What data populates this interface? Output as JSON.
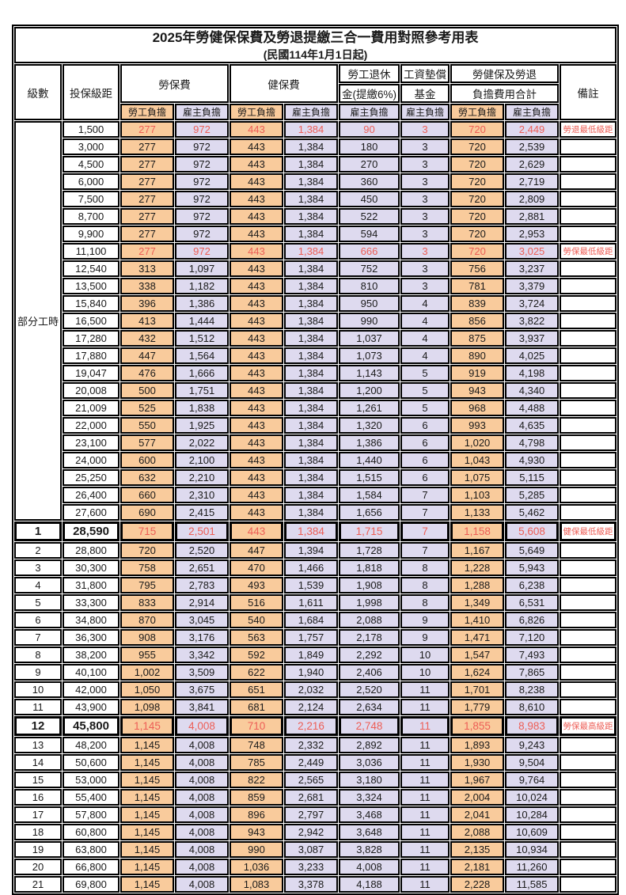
{
  "title": "2025年勞健保保費及勞退提繳三合一費用對照參考用表",
  "subtitle": "(民國114年1月1日起)",
  "columns": {
    "level": "級數",
    "bracket": "投保級距",
    "labor_insurance": "勞保費",
    "health_insurance": "健保費",
    "pension_line1": "勞工退休",
    "pension_line2": "金(提繳6%)",
    "wage_fund_line1": "工資墊償",
    "wage_fund_line2": "基金",
    "combined_line1": "勞健保及勞退",
    "combined_line2": "負擔費用合計",
    "remark": "備註",
    "worker_share": "勞工負擔",
    "employer_share": "雇主負擔"
  },
  "part_time_group_label": "部分工時",
  "colors": {
    "worker_bg": "#F9CB9C",
    "employer_bg": "#DEDAEF",
    "highlight_red": "#ED5E56",
    "border": "#000000"
  },
  "rows": [
    {
      "level": null,
      "bracket": "1,500",
      "values": [
        "277",
        "972",
        "443",
        "1,384",
        "90",
        "3",
        "720",
        "2,449"
      ],
      "remark": "勞退最低級距",
      "red": true,
      "emphasis": false
    },
    {
      "level": null,
      "bracket": "3,000",
      "values": [
        "277",
        "972",
        "443",
        "1,384",
        "180",
        "3",
        "720",
        "2,539"
      ],
      "remark": "",
      "red": false,
      "emphasis": false
    },
    {
      "level": null,
      "bracket": "4,500",
      "values": [
        "277",
        "972",
        "443",
        "1,384",
        "270",
        "3",
        "720",
        "2,629"
      ],
      "remark": "",
      "red": false,
      "emphasis": false
    },
    {
      "level": null,
      "bracket": "6,000",
      "values": [
        "277",
        "972",
        "443",
        "1,384",
        "360",
        "3",
        "720",
        "2,719"
      ],
      "remark": "",
      "red": false,
      "emphasis": false
    },
    {
      "level": null,
      "bracket": "7,500",
      "values": [
        "277",
        "972",
        "443",
        "1,384",
        "450",
        "3",
        "720",
        "2,809"
      ],
      "remark": "",
      "red": false,
      "emphasis": false
    },
    {
      "level": null,
      "bracket": "8,700",
      "values": [
        "277",
        "972",
        "443",
        "1,384",
        "522",
        "3",
        "720",
        "2,881"
      ],
      "remark": "",
      "red": false,
      "emphasis": false
    },
    {
      "level": null,
      "bracket": "9,900",
      "values": [
        "277",
        "972",
        "443",
        "1,384",
        "594",
        "3",
        "720",
        "2,953"
      ],
      "remark": "",
      "red": false,
      "emphasis": false
    },
    {
      "level": null,
      "bracket": "11,100",
      "values": [
        "277",
        "972",
        "443",
        "1,384",
        "666",
        "3",
        "720",
        "3,025"
      ],
      "remark": "勞保最低級距",
      "red": true,
      "emphasis": false
    },
    {
      "level": null,
      "bracket": "12,540",
      "values": [
        "313",
        "1,097",
        "443",
        "1,384",
        "752",
        "3",
        "756",
        "3,237"
      ],
      "remark": "",
      "red": false,
      "emphasis": false
    },
    {
      "level": null,
      "bracket": "13,500",
      "values": [
        "338",
        "1,182",
        "443",
        "1,384",
        "810",
        "3",
        "781",
        "3,379"
      ],
      "remark": "",
      "red": false,
      "emphasis": false
    },
    {
      "level": null,
      "bracket": "15,840",
      "values": [
        "396",
        "1,386",
        "443",
        "1,384",
        "950",
        "4",
        "839",
        "3,724"
      ],
      "remark": "",
      "red": false,
      "emphasis": false
    },
    {
      "level": null,
      "bracket": "16,500",
      "values": [
        "413",
        "1,444",
        "443",
        "1,384",
        "990",
        "4",
        "856",
        "3,822"
      ],
      "remark": "",
      "red": false,
      "emphasis": false
    },
    {
      "level": null,
      "bracket": "17,280",
      "values": [
        "432",
        "1,512",
        "443",
        "1,384",
        "1,037",
        "4",
        "875",
        "3,937"
      ],
      "remark": "",
      "red": false,
      "emphasis": false
    },
    {
      "level": null,
      "bracket": "17,880",
      "values": [
        "447",
        "1,564",
        "443",
        "1,384",
        "1,073",
        "4",
        "890",
        "4,025"
      ],
      "remark": "",
      "red": false,
      "emphasis": false
    },
    {
      "level": null,
      "bracket": "19,047",
      "values": [
        "476",
        "1,666",
        "443",
        "1,384",
        "1,143",
        "5",
        "919",
        "4,198"
      ],
      "remark": "",
      "red": false,
      "emphasis": false
    },
    {
      "level": null,
      "bracket": "20,008",
      "values": [
        "500",
        "1,751",
        "443",
        "1,384",
        "1,200",
        "5",
        "943",
        "4,340"
      ],
      "remark": "",
      "red": false,
      "emphasis": false
    },
    {
      "level": null,
      "bracket": "21,009",
      "values": [
        "525",
        "1,838",
        "443",
        "1,384",
        "1,261",
        "5",
        "968",
        "4,488"
      ],
      "remark": "",
      "red": false,
      "emphasis": false
    },
    {
      "level": null,
      "bracket": "22,000",
      "values": [
        "550",
        "1,925",
        "443",
        "1,384",
        "1,320",
        "6",
        "993",
        "4,635"
      ],
      "remark": "",
      "red": false,
      "emphasis": false
    },
    {
      "level": null,
      "bracket": "23,100",
      "values": [
        "577",
        "2,022",
        "443",
        "1,384",
        "1,386",
        "6",
        "1,020",
        "4,798"
      ],
      "remark": "",
      "red": false,
      "emphasis": false
    },
    {
      "level": null,
      "bracket": "24,000",
      "values": [
        "600",
        "2,100",
        "443",
        "1,384",
        "1,440",
        "6",
        "1,043",
        "4,930"
      ],
      "remark": "",
      "red": false,
      "emphasis": false
    },
    {
      "level": null,
      "bracket": "25,250",
      "values": [
        "632",
        "2,210",
        "443",
        "1,384",
        "1,515",
        "6",
        "1,075",
        "5,115"
      ],
      "remark": "",
      "red": false,
      "emphasis": false
    },
    {
      "level": null,
      "bracket": "26,400",
      "values": [
        "660",
        "2,310",
        "443",
        "1,384",
        "1,584",
        "7",
        "1,103",
        "5,285"
      ],
      "remark": "",
      "red": false,
      "emphasis": false
    },
    {
      "level": null,
      "bracket": "27,600",
      "values": [
        "690",
        "2,415",
        "443",
        "1,384",
        "1,656",
        "7",
        "1,133",
        "5,462"
      ],
      "remark": "",
      "red": false,
      "emphasis": false
    },
    {
      "level": "1",
      "bracket": "28,590",
      "values": [
        "715",
        "2,501",
        "443",
        "1,384",
        "1,715",
        "7",
        "1,158",
        "5,608"
      ],
      "remark": "健保最低級距",
      "red": true,
      "emphasis": true
    },
    {
      "level": "2",
      "bracket": "28,800",
      "values": [
        "720",
        "2,520",
        "447",
        "1,394",
        "1,728",
        "7",
        "1,167",
        "5,649"
      ],
      "remark": "",
      "red": false,
      "emphasis": false
    },
    {
      "level": "3",
      "bracket": "30,300",
      "values": [
        "758",
        "2,651",
        "470",
        "1,466",
        "1,818",
        "8",
        "1,228",
        "5,943"
      ],
      "remark": "",
      "red": false,
      "emphasis": false
    },
    {
      "level": "4",
      "bracket": "31,800",
      "values": [
        "795",
        "2,783",
        "493",
        "1,539",
        "1,908",
        "8",
        "1,288",
        "6,238"
      ],
      "remark": "",
      "red": false,
      "emphasis": false
    },
    {
      "level": "5",
      "bracket": "33,300",
      "values": [
        "833",
        "2,914",
        "516",
        "1,611",
        "1,998",
        "8",
        "1,349",
        "6,531"
      ],
      "remark": "",
      "red": false,
      "emphasis": false
    },
    {
      "level": "6",
      "bracket": "34,800",
      "values": [
        "870",
        "3,045",
        "540",
        "1,684",
        "2,088",
        "9",
        "1,410",
        "6,826"
      ],
      "remark": "",
      "red": false,
      "emphasis": false
    },
    {
      "level": "7",
      "bracket": "36,300",
      "values": [
        "908",
        "3,176",
        "563",
        "1,757",
        "2,178",
        "9",
        "1,471",
        "7,120"
      ],
      "remark": "",
      "red": false,
      "emphasis": false
    },
    {
      "level": "8",
      "bracket": "38,200",
      "values": [
        "955",
        "3,342",
        "592",
        "1,849",
        "2,292",
        "10",
        "1,547",
        "7,493"
      ],
      "remark": "",
      "red": false,
      "emphasis": false
    },
    {
      "level": "9",
      "bracket": "40,100",
      "values": [
        "1,002",
        "3,509",
        "622",
        "1,940",
        "2,406",
        "10",
        "1,624",
        "7,865"
      ],
      "remark": "",
      "red": false,
      "emphasis": false
    },
    {
      "level": "10",
      "bracket": "42,000",
      "values": [
        "1,050",
        "3,675",
        "651",
        "2,032",
        "2,520",
        "11",
        "1,701",
        "8,238"
      ],
      "remark": "",
      "red": false,
      "emphasis": false
    },
    {
      "level": "11",
      "bracket": "43,900",
      "values": [
        "1,098",
        "3,841",
        "681",
        "2,124",
        "2,634",
        "11",
        "1,779",
        "8,610"
      ],
      "remark": "",
      "red": false,
      "emphasis": false
    },
    {
      "level": "12",
      "bracket": "45,800",
      "values": [
        "1,145",
        "4,008",
        "710",
        "2,216",
        "2,748",
        "11",
        "1,855",
        "8,983"
      ],
      "remark": "勞保最高級距",
      "red": true,
      "emphasis": true
    },
    {
      "level": "13",
      "bracket": "48,200",
      "values": [
        "1,145",
        "4,008",
        "748",
        "2,332",
        "2,892",
        "11",
        "1,893",
        "9,243"
      ],
      "remark": "",
      "red": false,
      "emphasis": false
    },
    {
      "level": "14",
      "bracket": "50,600",
      "values": [
        "1,145",
        "4,008",
        "785",
        "2,449",
        "3,036",
        "11",
        "1,930",
        "9,504"
      ],
      "remark": "",
      "red": false,
      "emphasis": false
    },
    {
      "level": "15",
      "bracket": "53,000",
      "values": [
        "1,145",
        "4,008",
        "822",
        "2,565",
        "3,180",
        "11",
        "1,967",
        "9,764"
      ],
      "remark": "",
      "red": false,
      "emphasis": false
    },
    {
      "level": "16",
      "bracket": "55,400",
      "values": [
        "1,145",
        "4,008",
        "859",
        "2,681",
        "3,324",
        "11",
        "2,004",
        "10,024"
      ],
      "remark": "",
      "red": false,
      "emphasis": false
    },
    {
      "level": "17",
      "bracket": "57,800",
      "values": [
        "1,145",
        "4,008",
        "896",
        "2,797",
        "3,468",
        "11",
        "2,041",
        "10,284"
      ],
      "remark": "",
      "red": false,
      "emphasis": false
    },
    {
      "level": "18",
      "bracket": "60,800",
      "values": [
        "1,145",
        "4,008",
        "943",
        "2,942",
        "3,648",
        "11",
        "2,088",
        "10,609"
      ],
      "remark": "",
      "red": false,
      "emphasis": false
    },
    {
      "level": "19",
      "bracket": "63,800",
      "values": [
        "1,145",
        "4,008",
        "990",
        "3,087",
        "3,828",
        "11",
        "2,135",
        "10,934"
      ],
      "remark": "",
      "red": false,
      "emphasis": false
    },
    {
      "level": "20",
      "bracket": "66,800",
      "values": [
        "1,145",
        "4,008",
        "1,036",
        "3,233",
        "4,008",
        "11",
        "2,181",
        "11,260"
      ],
      "remark": "",
      "red": false,
      "emphasis": false
    },
    {
      "level": "21",
      "bracket": "69,800",
      "values": [
        "1,145",
        "4,008",
        "1,083",
        "3,378",
        "4,188",
        "11",
        "2,228",
        "11,585"
      ],
      "remark": "",
      "red": false,
      "emphasis": false
    }
  ]
}
